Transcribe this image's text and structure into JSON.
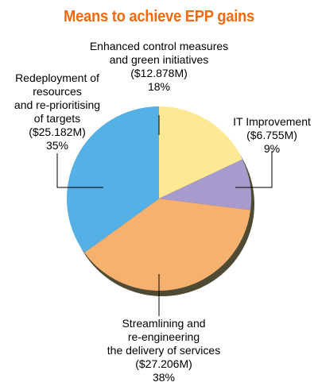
{
  "colors": {
    "title": "#f26a0e",
    "leader": "#000000",
    "shadow": "#4f4a33"
  },
  "chart_data": {
    "type": "pie",
    "title": "Means to achieve EPP gains",
    "start_angle_deg": 0,
    "direction": "clockwise",
    "slices": [
      {
        "lines": [
          "Enhanced control measures",
          "and green initiatives"
        ],
        "amount": "($12.878M)",
        "percent_label": "18%",
        "value": 18,
        "color": "#fde894"
      },
      {
        "lines": [
          "IT Improvement"
        ],
        "amount": "($6.755M)",
        "percent_label": "9%",
        "value": 9,
        "color": "#a79acd"
      },
      {
        "lines": [
          "Streamlining and",
          "re-engineering",
          "the delivery of services"
        ],
        "amount": "($27.206M)",
        "percent_label": "38%",
        "value": 38,
        "color": "#f7b16e"
      },
      {
        "lines": [
          "Redeployment of",
          "resources",
          "and re-prioritising",
          "of targets"
        ],
        "amount": "($25.182M)",
        "percent_label": "35%",
        "value": 35,
        "color": "#55b0e6"
      }
    ]
  }
}
